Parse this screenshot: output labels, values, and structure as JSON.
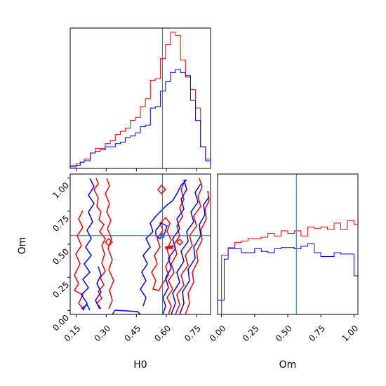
{
  "chart_data": {
    "type": "corner",
    "parameters": [
      "H0",
      "Om"
    ],
    "truths": {
      "H0": 0.58,
      "Om": 0.565
    },
    "colors": {
      "red": "#ff0000",
      "blue": "#0000ff",
      "truth": "#1f77b4"
    },
    "panels": [
      {
        "id": "H0-hist",
        "type": "histogram",
        "xlim": [
          0.12,
          0.82
        ],
        "series": [
          {
            "color": "red",
            "x": [
              0.12,
              0.15,
              0.17,
              0.19,
              0.22,
              0.245,
              0.27,
              0.295,
              0.32,
              0.345,
              0.37,
              0.395,
              0.42,
              0.445,
              0.47,
              0.495,
              0.52,
              0.545,
              0.57,
              0.595,
              0.62,
              0.645,
              0.67,
              0.695,
              0.72,
              0.745,
              0.77,
              0.795,
              0.82
            ],
            "values": [
              2,
              3,
              4,
              6,
              10,
              13,
              13,
              16,
              18,
              22,
              24,
              26,
              31,
              33,
              40,
              45,
              57,
              58,
              71,
              80,
              88,
              86,
              70,
              59,
              51,
              39,
              14,
              6
            ]
          },
          {
            "color": "blue",
            "x": [
              0.12,
              0.15,
              0.17,
              0.19,
              0.22,
              0.245,
              0.27,
              0.295,
              0.32,
              0.345,
              0.37,
              0.395,
              0.42,
              0.445,
              0.47,
              0.495,
              0.52,
              0.545,
              0.57,
              0.595,
              0.62,
              0.645,
              0.67,
              0.695,
              0.72,
              0.745,
              0.77,
              0.795,
              0.82
            ],
            "values": [
              1,
              2,
              4,
              5,
              10,
              11,
              12,
              14,
              14,
              16,
              17,
              20,
              21,
              23,
              27,
              28,
              39,
              40,
              50,
              56,
              62,
              64,
              62,
              60,
              44,
              31,
              14,
              5
            ]
          }
        ]
      },
      {
        "id": "Om-hist",
        "type": "histogram",
        "xlim": [
          -0.03,
          1.03
        ],
        "series": [
          {
            "color": "red",
            "x": [
              -0.03,
              0.0,
              0.05,
              0.1,
              0.15,
              0.2,
              0.25,
              0.3,
              0.35,
              0.4,
              0.45,
              0.5,
              0.55,
              0.6,
              0.65,
              0.7,
              0.75,
              0.8,
              0.85,
              0.9,
              0.95,
              1.0,
              1.03
            ],
            "values": [
              0,
              46,
              52,
              56,
              57,
              59,
              59,
              60,
              63,
              61,
              65,
              63,
              65,
              61,
              68,
              67,
              68,
              66,
              71,
              66,
              73,
              70,
              0
            ]
          },
          {
            "color": "blue",
            "x": [
              -0.03,
              0.0,
              0.02,
              0.05,
              0.1,
              0.15,
              0.2,
              0.25,
              0.3,
              0.35,
              0.4,
              0.45,
              0.5,
              0.55,
              0.6,
              0.65,
              0.7,
              0.75,
              0.8,
              0.85,
              0.9,
              0.95,
              1.0,
              1.03
            ],
            "values": [
              11,
              11,
              43,
              51,
              51,
              48,
              48,
              51,
              49,
              48,
              51,
              52,
              52,
              51,
              53,
              55,
              48,
              45,
              45,
              48,
              47,
              47,
              30
            ]
          }
        ]
      },
      {
        "id": "H0-Om-2d",
        "type": "contour",
        "xlim": [
          0.12,
          0.82
        ],
        "ylim": [
          -0.03,
          1.03
        ],
        "xticks": [
          "0.15",
          "0.30",
          "0.45",
          "0.60",
          "0.75"
        ],
        "yticks": [
          "0.00",
          "0.25",
          "0.50",
          "0.75",
          "1.00"
        ],
        "xlabel": "H0",
        "ylabel": "Om"
      }
    ],
    "Om_xticks": [
      "0.00",
      "0.25",
      "0.50",
      "0.75",
      "1.00"
    ],
    "Om_xlabel": "Om"
  }
}
